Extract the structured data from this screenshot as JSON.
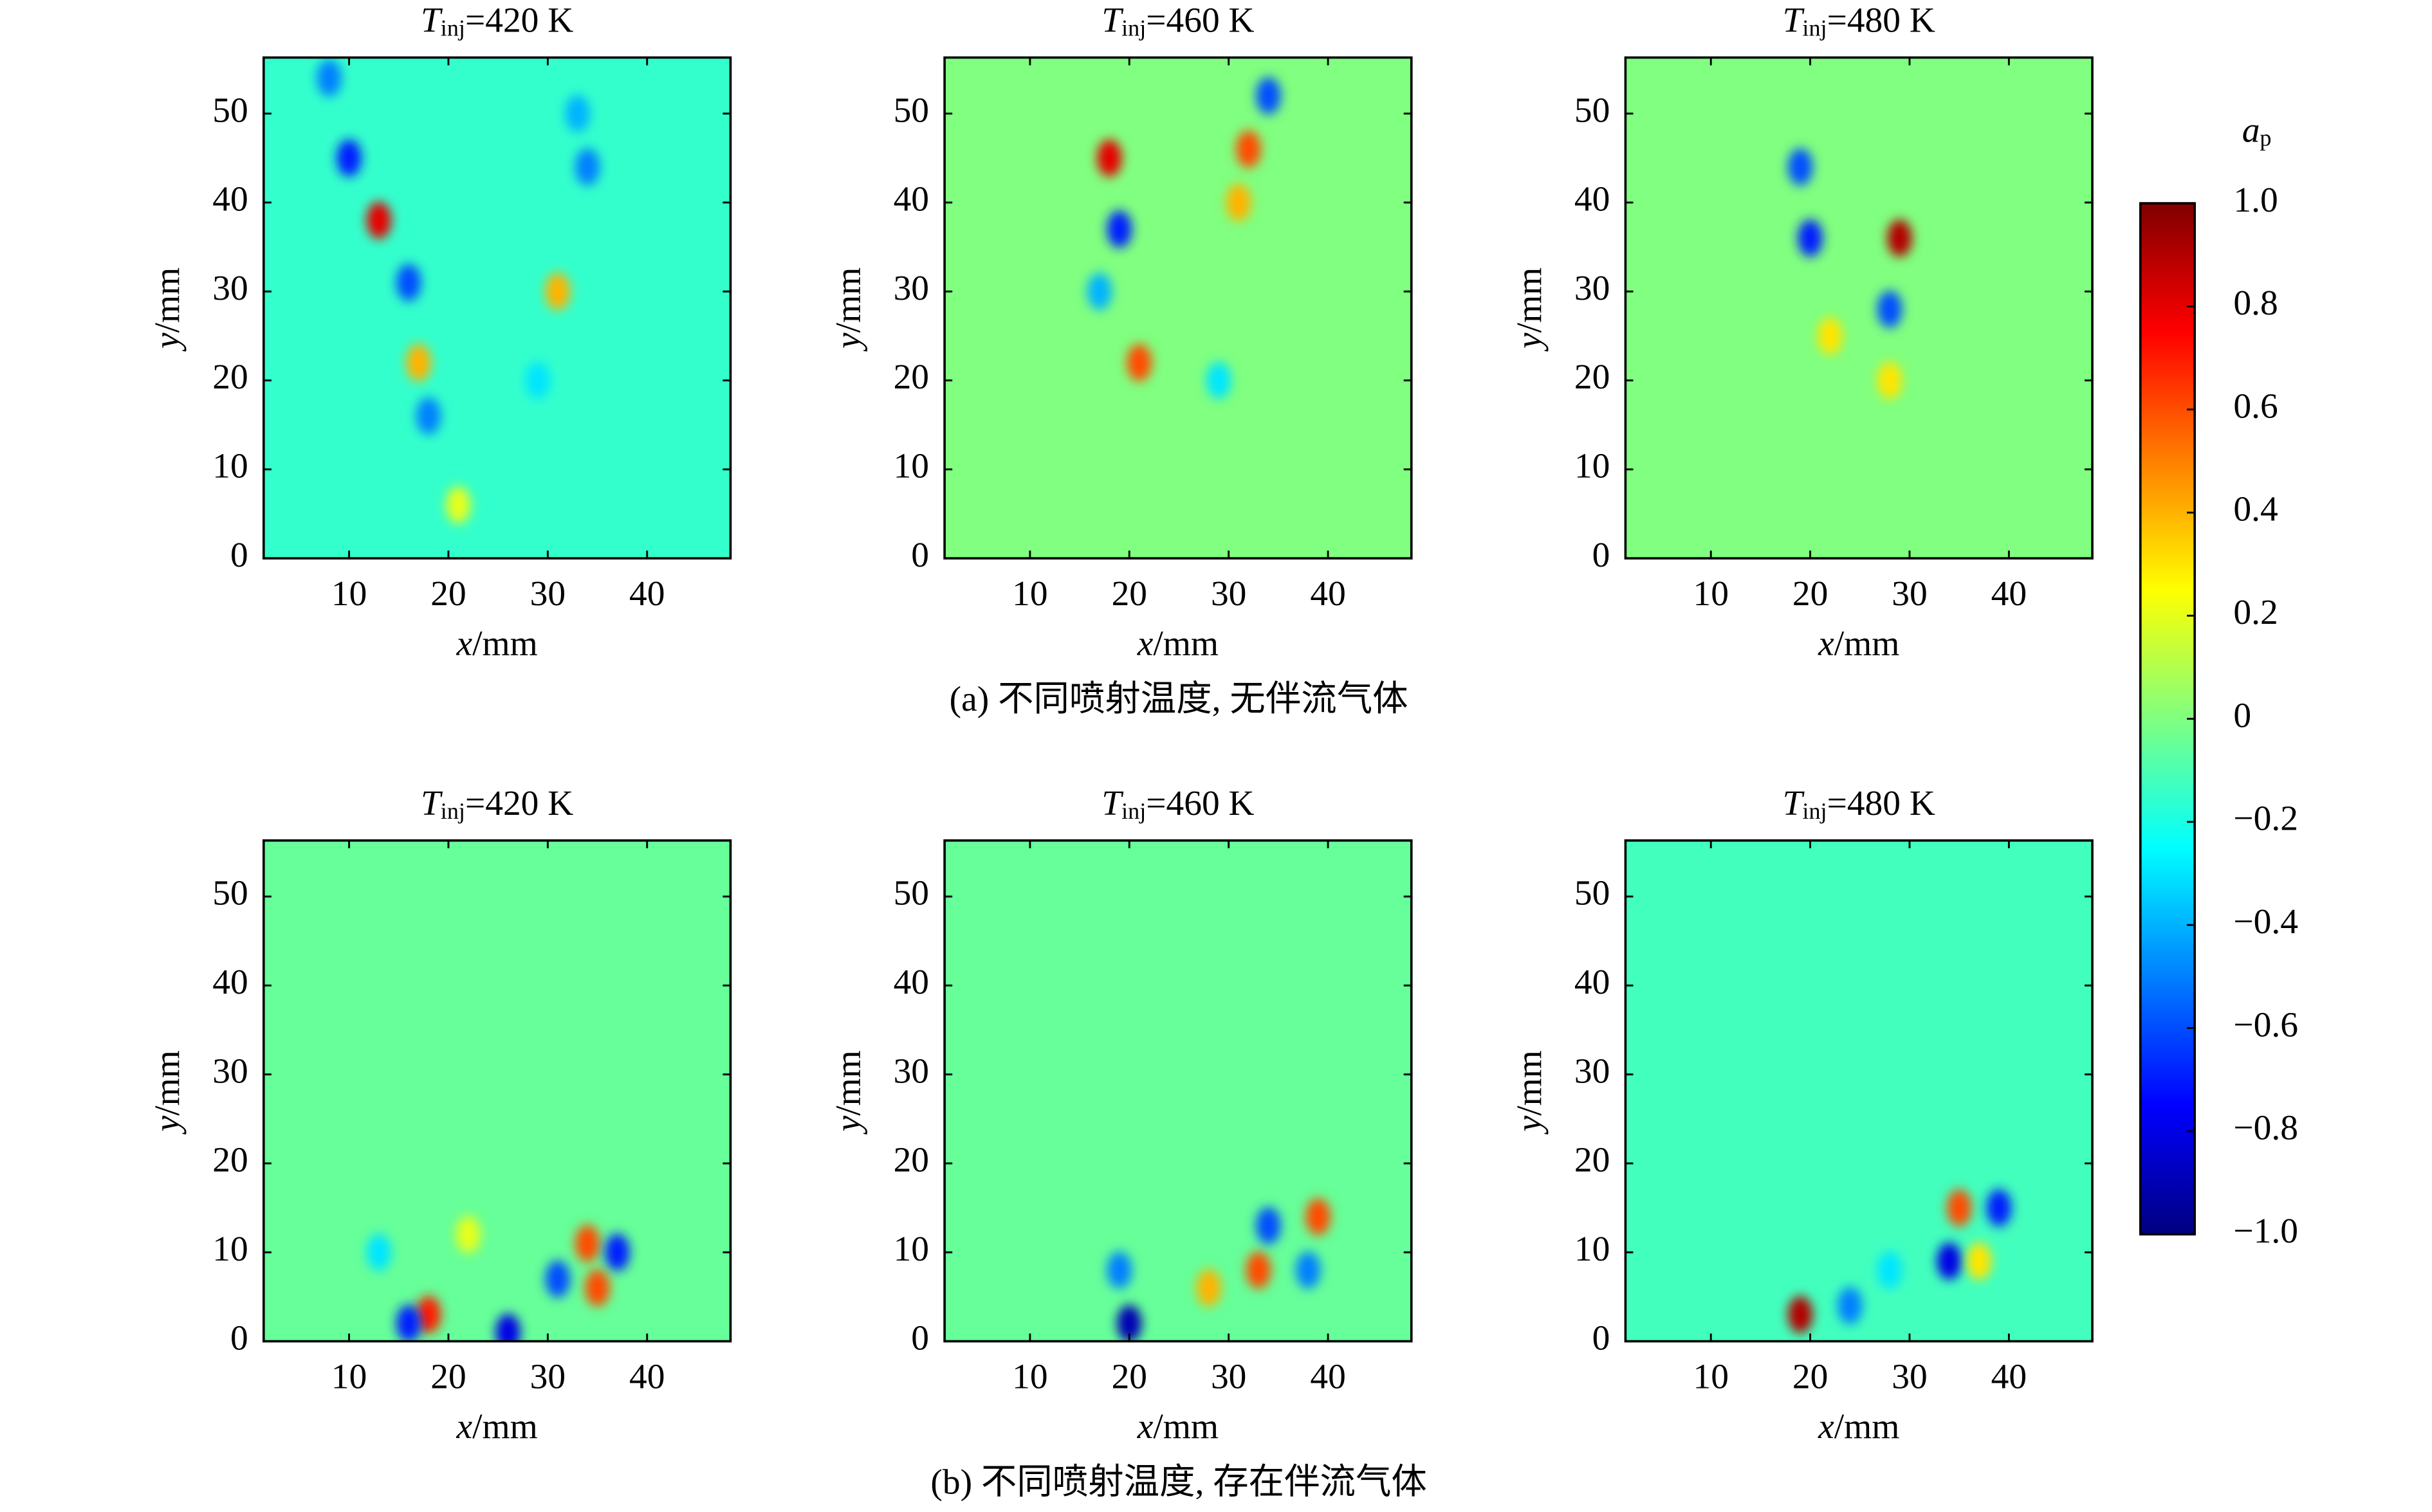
{
  "chart_data": [
    {
      "type": "heatmap",
      "title": {
        "symbol": "T",
        "subscript": "inj",
        "text": "=420 K"
      },
      "x_label": {
        "var": "x",
        "unit": "/mm"
      },
      "y_label": {
        "var": "y",
        "unit": "/mm"
      },
      "xlim": [
        1.4,
        48.4
      ],
      "ylim": [
        0,
        56.3
      ],
      "xticks": [
        10,
        20,
        30,
        40
      ],
      "yticks": [
        0,
        10,
        20,
        30,
        40,
        50
      ],
      "background": -0.15,
      "blobs": [
        {
          "x": 8,
          "y": 54,
          "value": -0.5
        },
        {
          "x": 10,
          "y": 45,
          "value": -0.7
        },
        {
          "x": 13,
          "y": 38,
          "value": 0.8
        },
        {
          "x": 16,
          "y": 31,
          "value": -0.6
        },
        {
          "x": 17,
          "y": 22,
          "value": 0.4
        },
        {
          "x": 18,
          "y": 16,
          "value": -0.5
        },
        {
          "x": 21,
          "y": 6,
          "value": 0.2
        },
        {
          "x": 33,
          "y": 50,
          "value": -0.4
        },
        {
          "x": 34,
          "y": 44,
          "value": -0.5
        },
        {
          "x": 31,
          "y": 30,
          "value": 0.4
        },
        {
          "x": 29,
          "y": 20,
          "value": -0.3
        }
      ]
    },
    {
      "type": "heatmap",
      "title": {
        "symbol": "T",
        "subscript": "inj",
        "text": "=460 K"
      },
      "x_label": {
        "var": "x",
        "unit": "/mm"
      },
      "y_label": {
        "var": "y",
        "unit": "/mm"
      },
      "xlim": [
        1.4,
        48.4
      ],
      "ylim": [
        0,
        56.3
      ],
      "xticks": [
        10,
        20,
        30,
        40
      ],
      "yticks": [
        0,
        10,
        20,
        30,
        40,
        50
      ],
      "background": 0,
      "blobs": [
        {
          "x": 18,
          "y": 45,
          "value": 0.8
        },
        {
          "x": 19,
          "y": 37,
          "value": -0.7
        },
        {
          "x": 17,
          "y": 30,
          "value": -0.4
        },
        {
          "x": 21,
          "y": 22,
          "value": 0.6
        },
        {
          "x": 32,
          "y": 46,
          "value": 0.6
        },
        {
          "x": 34,
          "y": 52,
          "value": -0.6
        },
        {
          "x": 31,
          "y": 40,
          "value": 0.4
        },
        {
          "x": 29,
          "y": 20,
          "value": -0.3
        }
      ]
    },
    {
      "type": "heatmap",
      "title": {
        "symbol": "T",
        "subscript": "inj",
        "text": "=480 K"
      },
      "x_label": {
        "var": "x",
        "unit": "/mm"
      },
      "y_label": {
        "var": "y",
        "unit": "/mm"
      },
      "xlim": [
        1.4,
        48.4
      ],
      "ylim": [
        0,
        56.3
      ],
      "xticks": [
        10,
        20,
        30,
        40
      ],
      "yticks": [
        0,
        10,
        20,
        30,
        40,
        50
      ],
      "background": 0,
      "blobs": [
        {
          "x": 19,
          "y": 44,
          "value": -0.6
        },
        {
          "x": 20,
          "y": 36,
          "value": -0.7
        },
        {
          "x": 29,
          "y": 36,
          "value": 0.9
        },
        {
          "x": 28,
          "y": 28,
          "value": -0.6
        },
        {
          "x": 22,
          "y": 25,
          "value": 0.3
        },
        {
          "x": 28,
          "y": 20,
          "value": 0.3
        }
      ]
    },
    {
      "type": "heatmap",
      "title": {
        "symbol": "T",
        "subscript": "inj",
        "text": "=420 K"
      },
      "x_label": {
        "var": "x",
        "unit": "/mm"
      },
      "y_label": {
        "var": "y",
        "unit": "/mm"
      },
      "xlim": [
        1.4,
        48.4
      ],
      "ylim": [
        0,
        56.3
      ],
      "xticks": [
        10,
        20,
        30,
        40
      ],
      "yticks": [
        0,
        10,
        20,
        30,
        40,
        50
      ],
      "background": -0.05,
      "blobs": [
        {
          "x": 18,
          "y": 3,
          "value": 0.7
        },
        {
          "x": 16,
          "y": 2,
          "value": -0.7
        },
        {
          "x": 26,
          "y": 1,
          "value": -0.8
        },
        {
          "x": 34,
          "y": 11,
          "value": 0.6
        },
        {
          "x": 31,
          "y": 7,
          "value": -0.6
        },
        {
          "x": 37,
          "y": 10,
          "value": -0.7
        },
        {
          "x": 35,
          "y": 6,
          "value": 0.6
        },
        {
          "x": 22,
          "y": 12,
          "value": 0.2
        },
        {
          "x": 13,
          "y": 10,
          "value": -0.3
        }
      ]
    },
    {
      "type": "heatmap",
      "title": {
        "symbol": "T",
        "subscript": "inj",
        "text": "=460 K"
      },
      "x_label": {
        "var": "x",
        "unit": "/mm"
      },
      "y_label": {
        "var": "y",
        "unit": "/mm"
      },
      "xlim": [
        1.4,
        48.4
      ],
      "ylim": [
        0,
        56.3
      ],
      "xticks": [
        10,
        20,
        30,
        40
      ],
      "yticks": [
        0,
        10,
        20,
        30,
        40,
        50
      ],
      "background": -0.05,
      "blobs": [
        {
          "x": 20,
          "y": 2,
          "value": -0.9
        },
        {
          "x": 19,
          "y": 8,
          "value": -0.5
        },
        {
          "x": 33,
          "y": 8,
          "value": 0.6
        },
        {
          "x": 28,
          "y": 6,
          "value": 0.4
        },
        {
          "x": 34,
          "y": 13,
          "value": -0.6
        },
        {
          "x": 39,
          "y": 14,
          "value": 0.6
        },
        {
          "x": 38,
          "y": 8,
          "value": -0.5
        }
      ]
    },
    {
      "type": "heatmap",
      "title": {
        "symbol": "T",
        "subscript": "inj",
        "text": "=480 K"
      },
      "x_label": {
        "var": "x",
        "unit": "/mm"
      },
      "y_label": {
        "var": "y",
        "unit": "/mm"
      },
      "xlim": [
        1.4,
        48.4
      ],
      "ylim": [
        0,
        56.3
      ],
      "xticks": [
        10,
        20,
        30,
        40
      ],
      "yticks": [
        0,
        10,
        20,
        30,
        40,
        50
      ],
      "background": -0.12,
      "blobs": [
        {
          "x": 19,
          "y": 3,
          "value": 0.9
        },
        {
          "x": 24,
          "y": 4,
          "value": -0.5
        },
        {
          "x": 28,
          "y": 8,
          "value": -0.3
        },
        {
          "x": 34,
          "y": 9,
          "value": -0.8
        },
        {
          "x": 35,
          "y": 15,
          "value": 0.6
        },
        {
          "x": 39,
          "y": 15,
          "value": -0.7
        },
        {
          "x": 37,
          "y": 9,
          "value": 0.3
        }
      ]
    }
  ],
  "colorbar": {
    "label": {
      "symbol": "a",
      "subscript": "p"
    },
    "colormap": "jet",
    "clim": [
      -1,
      1
    ],
    "ticks": [
      {
        "value": 1.0,
        "label": "1.0"
      },
      0.8,
      0.6,
      0.4,
      0.2,
      0,
      {
        "value": -0.2,
        "label": "−0.2"
      },
      {
        "value": -0.4,
        "label": "−0.4"
      },
      {
        "value": -0.6,
        "label": "−0.6"
      },
      {
        "value": -0.8,
        "label": "−0.8"
      },
      {
        "value": -1.0,
        "label": "−1.0"
      }
    ]
  },
  "captions": [
    "(a) 不同喷射温度, 无伴流气体",
    "(b) 不同喷射温度, 存在伴流气体"
  ]
}
